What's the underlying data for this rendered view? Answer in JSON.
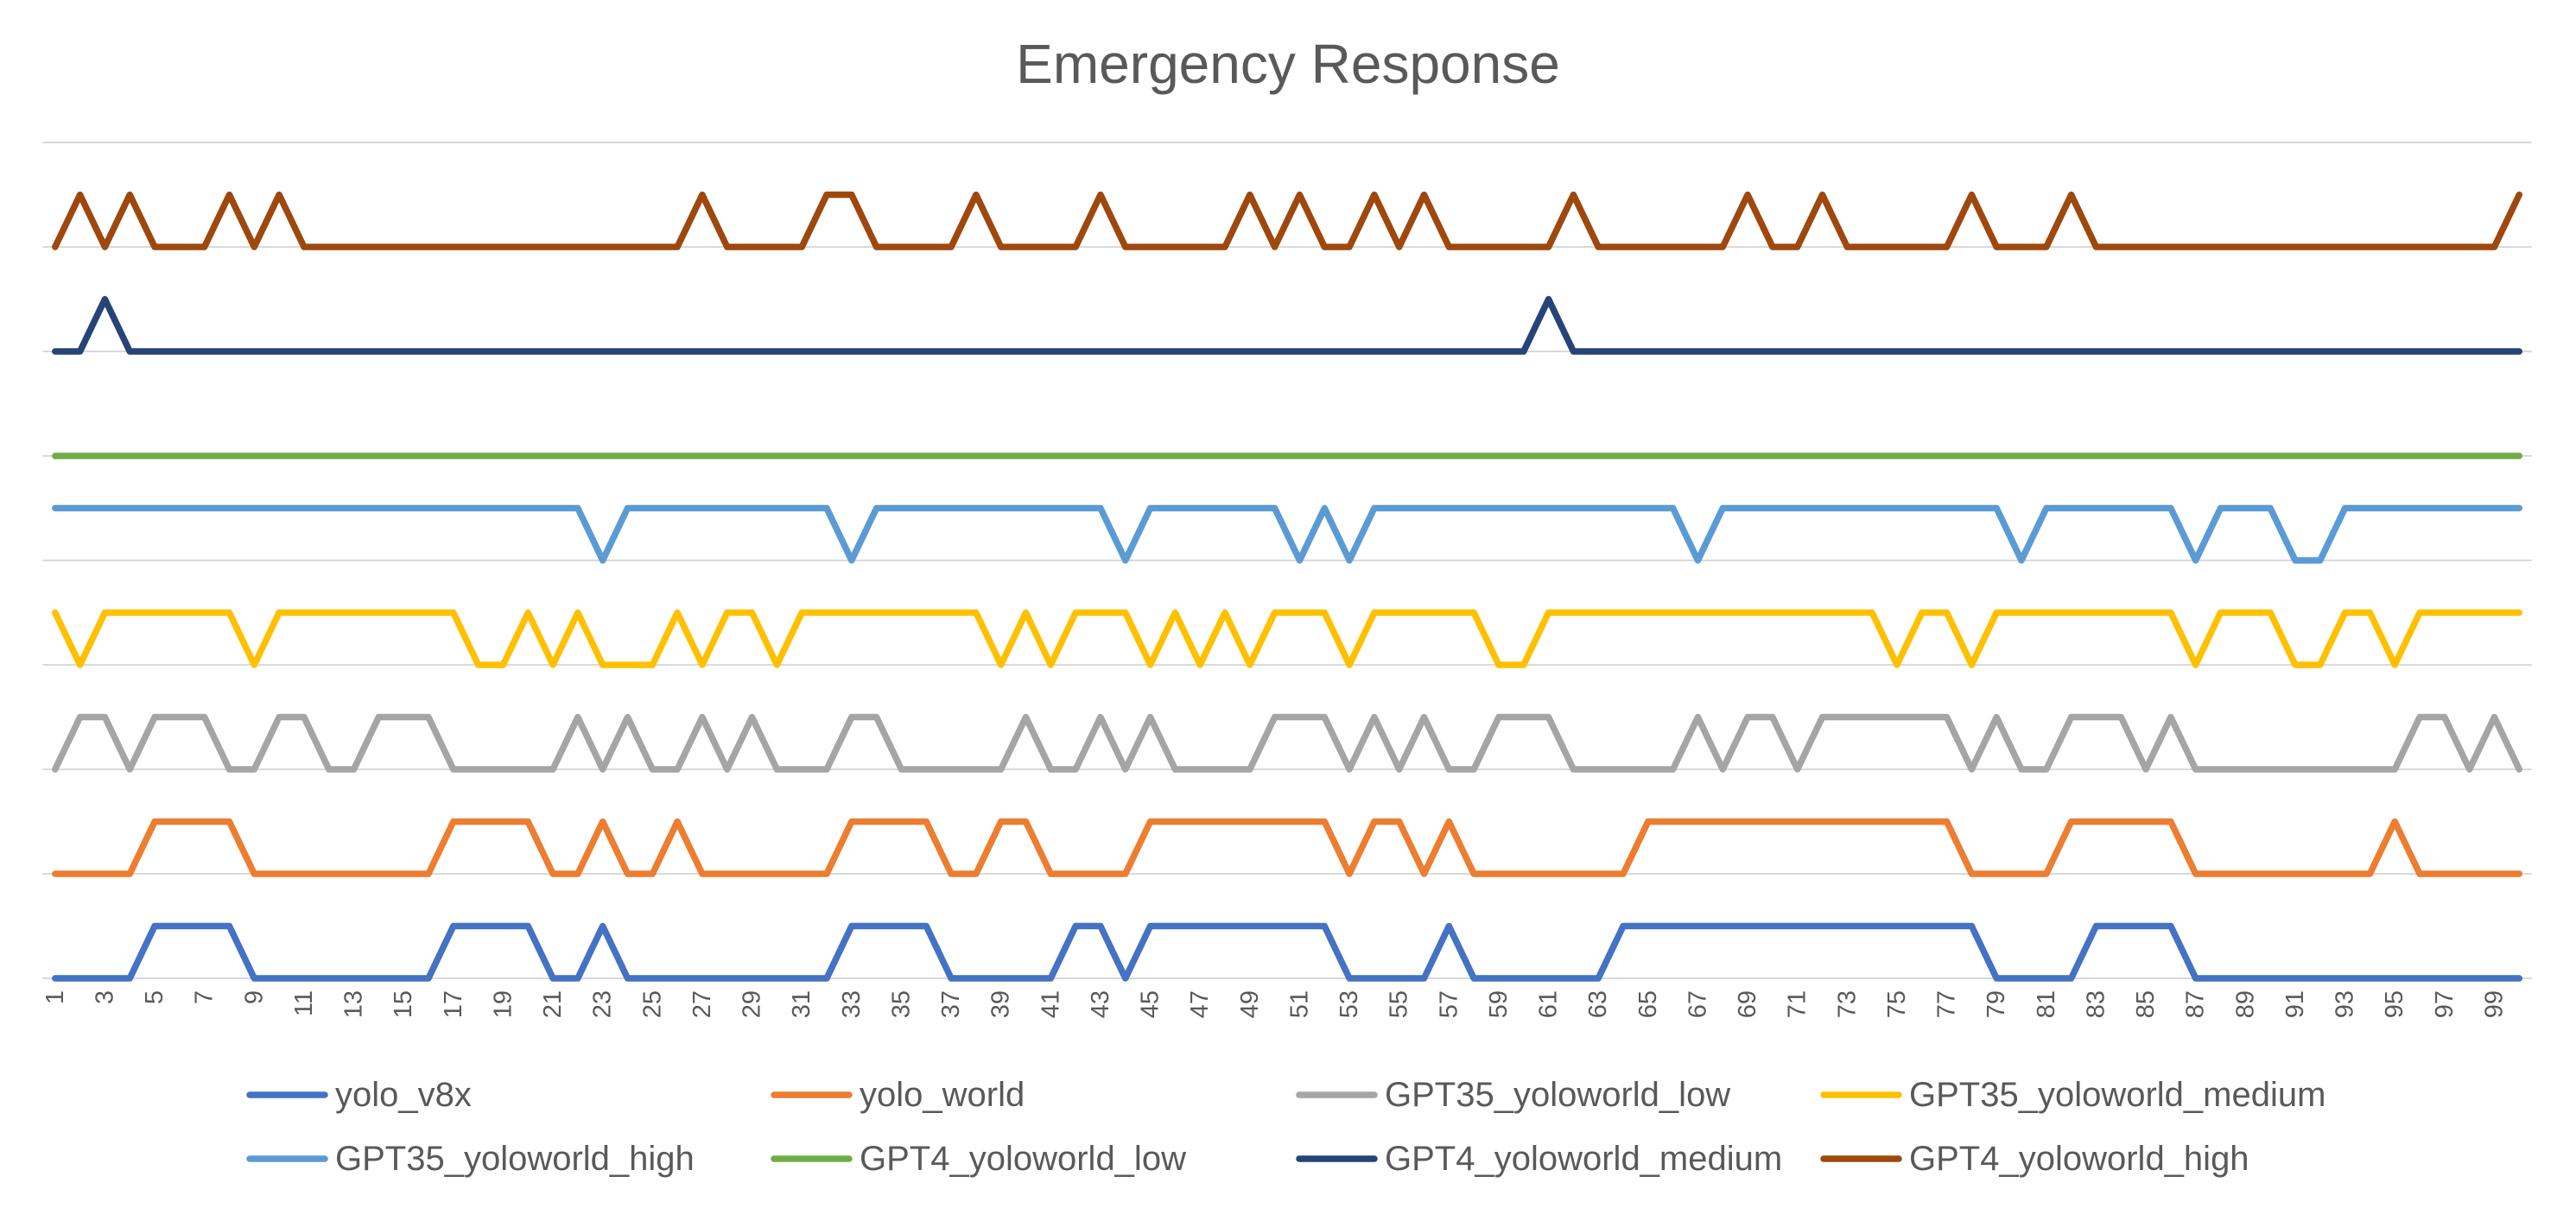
{
  "chart_data": {
    "type": "line",
    "title": "Emergency Response",
    "xlabel": "",
    "ylabel": "",
    "ylim": [
      0,
      8
    ],
    "y_major_unit": 1,
    "y_tick_labels_visible": false,
    "grid": true,
    "legend_position": "bottom",
    "x": [
      1,
      2,
      3,
      4,
      5,
      6,
      7,
      8,
      9,
      10,
      11,
      12,
      13,
      14,
      15,
      16,
      17,
      18,
      19,
      20,
      21,
      22,
      23,
      24,
      25,
      26,
      27,
      28,
      29,
      30,
      31,
      32,
      33,
      34,
      35,
      36,
      37,
      38,
      39,
      40,
      41,
      42,
      43,
      44,
      45,
      46,
      47,
      48,
      49,
      50,
      51,
      52,
      53,
      54,
      55,
      56,
      57,
      58,
      59,
      60,
      61,
      62,
      63,
      64,
      65,
      66,
      67,
      68,
      69,
      70,
      71,
      72,
      73,
      74,
      75,
      76,
      77,
      78,
      79,
      80,
      81,
      82,
      83,
      84,
      85,
      86,
      87,
      88,
      89,
      90,
      91,
      92,
      93,
      94,
      95,
      96,
      97,
      98,
      99,
      100
    ],
    "x_tick_labels": [
      "1",
      "3",
      "5",
      "7",
      "9",
      "11",
      "13",
      "15",
      "17",
      "19",
      "21",
      "23",
      "25",
      "27",
      "29",
      "31",
      "33",
      "35",
      "37",
      "39",
      "41",
      "43",
      "45",
      "47",
      "49",
      "51",
      "53",
      "55",
      "57",
      "59",
      "61",
      "63",
      "65",
      "67",
      "69",
      "71",
      "73",
      "75",
      "77",
      "79",
      "81",
      "83",
      "85",
      "87",
      "89",
      "91",
      "93",
      "95",
      "97",
      "99"
    ],
    "series": [
      {
        "name": "yolo_v8x",
        "color": "#4472C4",
        "values": [
          0,
          0,
          0,
          0,
          0.5,
          0.5,
          0.5,
          0.5,
          0,
          0,
          0,
          0,
          0,
          0,
          0,
          0,
          0.5,
          0.5,
          0.5,
          0.5,
          0,
          0,
          0.5,
          0,
          0,
          0,
          0,
          0,
          0,
          0,
          0,
          0,
          0.5,
          0.5,
          0.5,
          0.5,
          0,
          0,
          0,
          0,
          0,
          0.5,
          0.5,
          0,
          0.5,
          0.5,
          0.5,
          0.5,
          0.5,
          0.5,
          0.5,
          0.5,
          0,
          0,
          0,
          0,
          0.5,
          0,
          0,
          0,
          0,
          0,
          0,
          0.5,
          0.5,
          0.5,
          0.5,
          0.5,
          0.5,
          0.5,
          0.5,
          0.5,
          0.5,
          0.5,
          0.5,
          0.5,
          0.5,
          0.5,
          0,
          0,
          0,
          0,
          0.5,
          0.5,
          0.5,
          0.5,
          0,
          0,
          0,
          0,
          0,
          0,
          0,
          0,
          0,
          0,
          0,
          0,
          0,
          0
        ]
      },
      {
        "name": "yolo_world",
        "color": "#ED7D31",
        "values": [
          1,
          1,
          1,
          1,
          1.5,
          1.5,
          1.5,
          1.5,
          1,
          1,
          1,
          1,
          1,
          1,
          1,
          1,
          1.5,
          1.5,
          1.5,
          1.5,
          1,
          1,
          1.5,
          1,
          1,
          1.5,
          1,
          1,
          1,
          1,
          1,
          1,
          1.5,
          1.5,
          1.5,
          1.5,
          1,
          1,
          1.5,
          1.5,
          1,
          1,
          1,
          1,
          1.5,
          1.5,
          1.5,
          1.5,
          1.5,
          1.5,
          1.5,
          1.5,
          1,
          1.5,
          1.5,
          1,
          1.5,
          1,
          1,
          1,
          1,
          1,
          1,
          1,
          1.5,
          1.5,
          1.5,
          1.5,
          1.5,
          1.5,
          1.5,
          1.5,
          1.5,
          1.5,
          1.5,
          1.5,
          1.5,
          1,
          1,
          1,
          1,
          1.5,
          1.5,
          1.5,
          1.5,
          1.5,
          1,
          1,
          1,
          1,
          1,
          1,
          1,
          1,
          1.5,
          1,
          1,
          1,
          1,
          1
        ]
      },
      {
        "name": "GPT35_yoloworld_low",
        "color": "#A5A5A5",
        "values": [
          2,
          2.5,
          2.5,
          2,
          2.5,
          2.5,
          2.5,
          2,
          2,
          2.5,
          2.5,
          2,
          2,
          2.5,
          2.5,
          2.5,
          2,
          2,
          2,
          2,
          2,
          2.5,
          2,
          2.5,
          2,
          2,
          2.5,
          2,
          2.5,
          2,
          2,
          2,
          2.5,
          2.5,
          2,
          2,
          2,
          2,
          2,
          2.5,
          2,
          2,
          2.5,
          2,
          2.5,
          2,
          2,
          2,
          2,
          2.5,
          2.5,
          2.5,
          2,
          2.5,
          2,
          2.5,
          2,
          2,
          2.5,
          2.5,
          2.5,
          2,
          2,
          2,
          2,
          2,
          2.5,
          2,
          2.5,
          2.5,
          2,
          2.5,
          2.5,
          2.5,
          2.5,
          2.5,
          2.5,
          2,
          2.5,
          2,
          2,
          2.5,
          2.5,
          2.5,
          2,
          2.5,
          2,
          2,
          2,
          2,
          2,
          2,
          2,
          2,
          2,
          2.5,
          2.5,
          2,
          2.5,
          2
        ]
      },
      {
        "name": "GPT35_yoloworld_medium",
        "color": "#FFC000",
        "values": [
          3.5,
          3,
          3.5,
          3.5,
          3.5,
          3.5,
          3.5,
          3.5,
          3,
          3.5,
          3.5,
          3.5,
          3.5,
          3.5,
          3.5,
          3.5,
          3.5,
          3,
          3,
          3.5,
          3,
          3.5,
          3,
          3,
          3,
          3.5,
          3,
          3.5,
          3.5,
          3,
          3.5,
          3.5,
          3.5,
          3.5,
          3.5,
          3.5,
          3.5,
          3.5,
          3,
          3.5,
          3,
          3.5,
          3.5,
          3.5,
          3,
          3.5,
          3,
          3.5,
          3,
          3.5,
          3.5,
          3.5,
          3,
          3.5,
          3.5,
          3.5,
          3.5,
          3.5,
          3,
          3,
          3.5,
          3.5,
          3.5,
          3.5,
          3.5,
          3.5,
          3.5,
          3.5,
          3.5,
          3.5,
          3.5,
          3.5,
          3.5,
          3.5,
          3,
          3.5,
          3.5,
          3,
          3.5,
          3.5,
          3.5,
          3.5,
          3.5,
          3.5,
          3.5,
          3.5,
          3,
          3.5,
          3.5,
          3.5,
          3,
          3,
          3.5,
          3.5,
          3,
          3.5,
          3.5,
          3.5,
          3.5,
          3.5
        ]
      },
      {
        "name": "GPT35_yoloworld_high",
        "color": "#5B9BD5",
        "values": [
          4.5,
          4.5,
          4.5,
          4.5,
          4.5,
          4.5,
          4.5,
          4.5,
          4.5,
          4.5,
          4.5,
          4.5,
          4.5,
          4.5,
          4.5,
          4.5,
          4.5,
          4.5,
          4.5,
          4.5,
          4.5,
          4.5,
          4,
          4.5,
          4.5,
          4.5,
          4.5,
          4.5,
          4.5,
          4.5,
          4.5,
          4.5,
          4,
          4.5,
          4.5,
          4.5,
          4.5,
          4.5,
          4.5,
          4.5,
          4.5,
          4.5,
          4.5,
          4,
          4.5,
          4.5,
          4.5,
          4.5,
          4.5,
          4.5,
          4,
          4.5,
          4,
          4.5,
          4.5,
          4.5,
          4.5,
          4.5,
          4.5,
          4.5,
          4.5,
          4.5,
          4.5,
          4.5,
          4.5,
          4.5,
          4,
          4.5,
          4.5,
          4.5,
          4.5,
          4.5,
          4.5,
          4.5,
          4.5,
          4.5,
          4.5,
          4.5,
          4.5,
          4,
          4.5,
          4.5,
          4.5,
          4.5,
          4.5,
          4.5,
          4,
          4.5,
          4.5,
          4.5,
          4,
          4,
          4.5,
          4.5,
          4.5,
          4.5,
          4.5,
          4.5,
          4.5,
          4.5
        ]
      },
      {
        "name": "GPT4_yoloworld_low",
        "color": "#70AD47",
        "values": [
          5,
          5,
          5,
          5,
          5,
          5,
          5,
          5,
          5,
          5,
          5,
          5,
          5,
          5,
          5,
          5,
          5,
          5,
          5,
          5,
          5,
          5,
          5,
          5,
          5,
          5,
          5,
          5,
          5,
          5,
          5,
          5,
          5,
          5,
          5,
          5,
          5,
          5,
          5,
          5,
          5,
          5,
          5,
          5,
          5,
          5,
          5,
          5,
          5,
          5,
          5,
          5,
          5,
          5,
          5,
          5,
          5,
          5,
          5,
          5,
          5,
          5,
          5,
          5,
          5,
          5,
          5,
          5,
          5,
          5,
          5,
          5,
          5,
          5,
          5,
          5,
          5,
          5,
          5,
          5,
          5,
          5,
          5,
          5,
          5,
          5,
          5,
          5,
          5,
          5,
          5,
          5,
          5,
          5,
          5,
          5,
          5,
          5,
          5,
          5
        ]
      },
      {
        "name": "GPT4_yoloworld_medium",
        "color": "#264478",
        "values": [
          6,
          6,
          6.5,
          6,
          6,
          6,
          6,
          6,
          6,
          6,
          6,
          6,
          6,
          6,
          6,
          6,
          6,
          6,
          6,
          6,
          6,
          6,
          6,
          6,
          6,
          6,
          6,
          6,
          6,
          6,
          6,
          6,
          6,
          6,
          6,
          6,
          6,
          6,
          6,
          6,
          6,
          6,
          6,
          6,
          6,
          6,
          6,
          6,
          6,
          6,
          6,
          6,
          6,
          6,
          6,
          6,
          6,
          6,
          6,
          6,
          6.5,
          6,
          6,
          6,
          6,
          6,
          6,
          6,
          6,
          6,
          6,
          6,
          6,
          6,
          6,
          6,
          6,
          6,
          6,
          6,
          6,
          6,
          6,
          6,
          6,
          6,
          6,
          6,
          6,
          6,
          6,
          6,
          6,
          6,
          6,
          6,
          6,
          6,
          6,
          6
        ]
      },
      {
        "name": "GPT4_yoloworld_high",
        "color": "#9E480E",
        "values": [
          7,
          7.5,
          7,
          7.5,
          7,
          7,
          7,
          7.5,
          7,
          7.5,
          7,
          7,
          7,
          7,
          7,
          7,
          7,
          7,
          7,
          7,
          7,
          7,
          7,
          7,
          7,
          7,
          7.5,
          7,
          7,
          7,
          7,
          7.5,
          7.5,
          7,
          7,
          7,
          7,
          7.5,
          7,
          7,
          7,
          7,
          7.5,
          7,
          7,
          7,
          7,
          7,
          7.5,
          7,
          7.5,
          7,
          7,
          7.5,
          7,
          7.5,
          7,
          7,
          7,
          7,
          7,
          7.5,
          7,
          7,
          7,
          7,
          7,
          7,
          7.5,
          7,
          7,
          7.5,
          7,
          7,
          7,
          7,
          7,
          7.5,
          7,
          7,
          7,
          7.5,
          7,
          7,
          7,
          7,
          7,
          7,
          7,
          7,
          7,
          7,
          7,
          7,
          7,
          7,
          7,
          7,
          7,
          7.5
        ]
      }
    ]
  }
}
